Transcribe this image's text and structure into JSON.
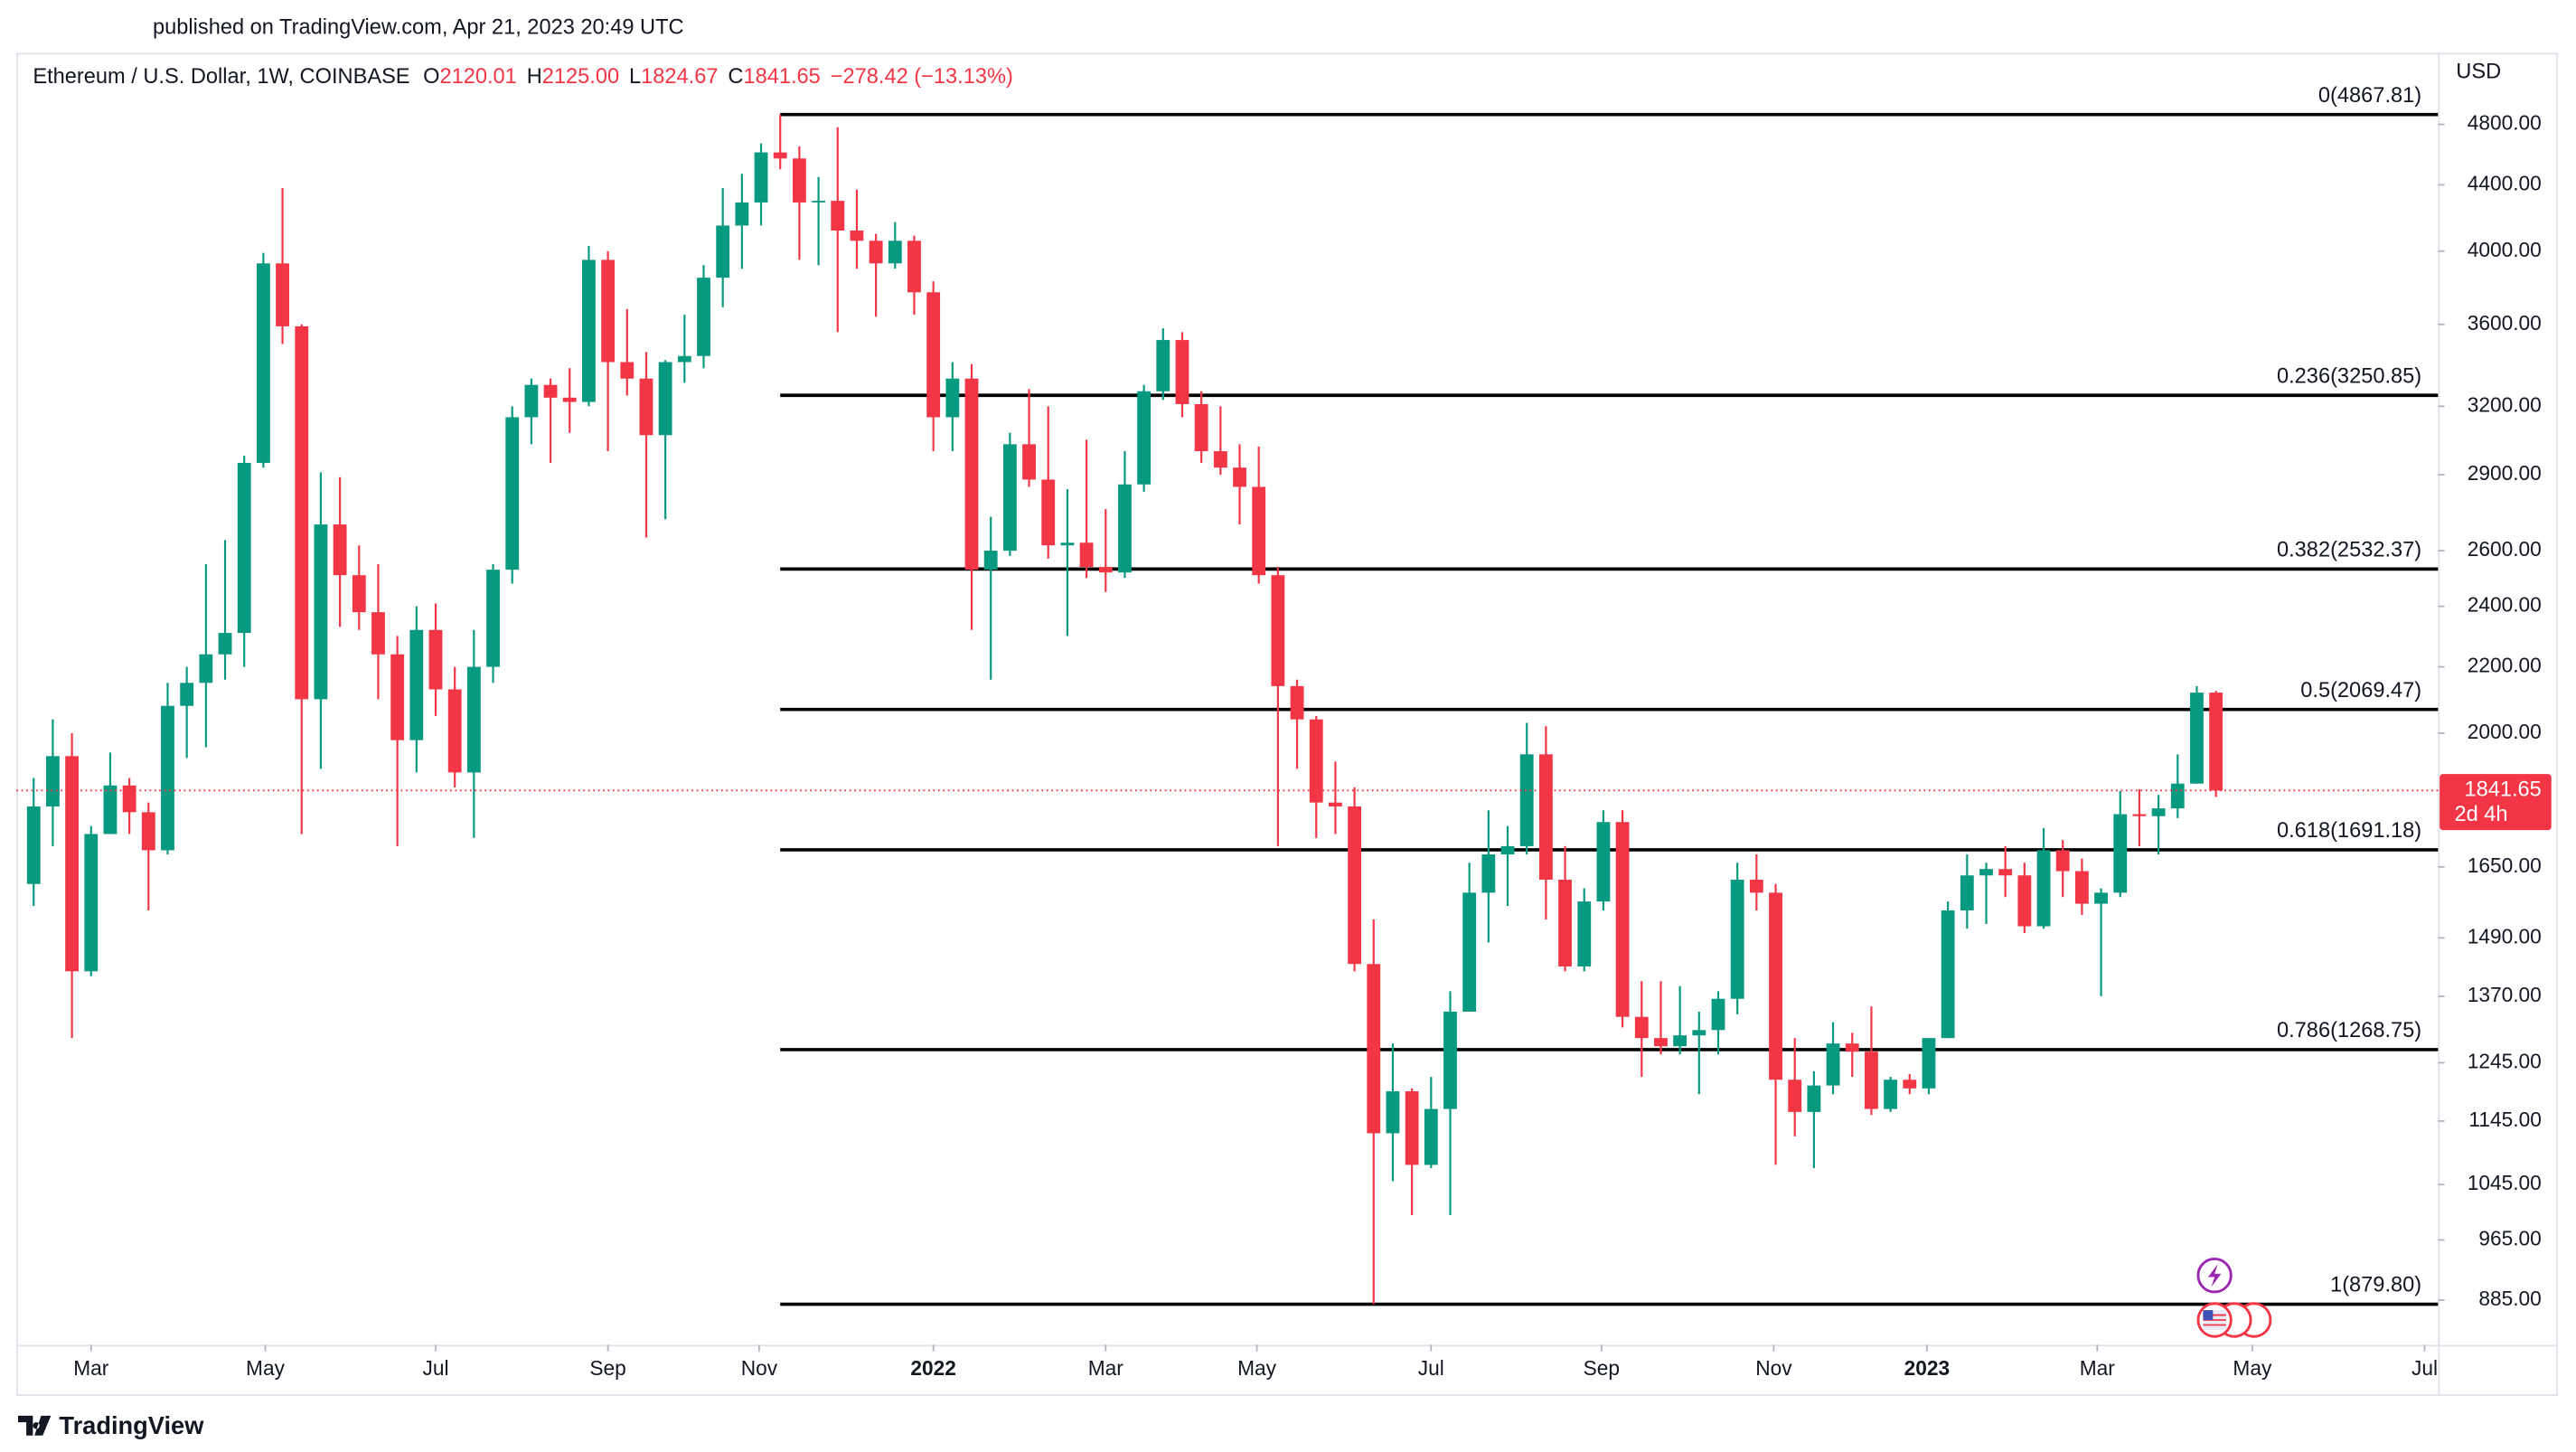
{
  "chart_data": {
    "type": "candlestick",
    "published": "published on TradingView.com, Apr 21, 2023 20:49 UTC",
    "legend": {
      "title": "Ethereum / U.S. Dollar, 1W, COINBASE",
      "fields": [
        {
          "key": "O",
          "value": "2120.01"
        },
        {
          "key": "H",
          "value": "2125.00"
        },
        {
          "key": "L",
          "value": "1824.67"
        },
        {
          "key": "C",
          "value": "1841.65"
        }
      ],
      "change": "−278.42 (−13.13%)"
    },
    "currency": "USD",
    "branding": "TradingView",
    "up_color": "#089981",
    "down_color": "#f23645",
    "fib_color": "#000000",
    "log_scale": true,
    "grid": false,
    "ylim": [
      830,
      5320
    ],
    "yticks": [
      {
        "value": 4800,
        "label": "4800.00"
      },
      {
        "value": 4400,
        "label": "4400.00"
      },
      {
        "value": 4000,
        "label": "4000.00"
      },
      {
        "value": 3600,
        "label": "3600.00"
      },
      {
        "value": 3200,
        "label": "3200.00"
      },
      {
        "value": 2900,
        "label": "2900.00"
      },
      {
        "value": 2600,
        "label": "2600.00"
      },
      {
        "value": 2400,
        "label": "2400.00"
      },
      {
        "value": 2200,
        "label": "2200.00"
      },
      {
        "value": 2000,
        "label": "2000.00"
      },
      {
        "value": 1650,
        "label": "1650.00"
      },
      {
        "value": 1490,
        "label": "1490.00"
      },
      {
        "value": 1370,
        "label": "1370.00"
      },
      {
        "value": 1245,
        "label": "1245.00"
      },
      {
        "value": 1145,
        "label": "1145.00"
      },
      {
        "value": 1045,
        "label": "1045.00"
      },
      {
        "value": 965,
        "label": "965.00"
      },
      {
        "value": 885,
        "label": "885.00"
      }
    ],
    "xlim": [
      -0.9,
      125.6
    ],
    "xticks": [
      {
        "value": 3.0,
        "label": "Mar"
      },
      {
        "value": 12.1,
        "label": "May"
      },
      {
        "value": 21.0,
        "label": "Jul"
      },
      {
        "value": 30.0,
        "label": "Sep"
      },
      {
        "value": 37.9,
        "label": "Nov"
      },
      {
        "value": 47.0,
        "label": "2022"
      },
      {
        "value": 56.0,
        "label": "Mar"
      },
      {
        "value": 63.9,
        "label": "May"
      },
      {
        "value": 73.0,
        "label": "Jul"
      },
      {
        "value": 81.9,
        "label": "Sep"
      },
      {
        "value": 90.9,
        "label": "Nov"
      },
      {
        "value": 98.9,
        "label": "2023"
      },
      {
        "value": 107.8,
        "label": "Mar"
      },
      {
        "value": 115.9,
        "label": "May"
      },
      {
        "value": 124.9,
        "label": "Jul"
      }
    ],
    "fib_levels": [
      {
        "value": 4867.81,
        "label": "0(4867.81)"
      },
      {
        "value": 3250.85,
        "label": "0.236(3250.85)"
      },
      {
        "value": 2532.37,
        "label": "0.382(2532.37)"
      },
      {
        "value": 2069.47,
        "label": "0.5(2069.47)"
      },
      {
        "value": 1691.18,
        "label": "0.618(1691.18)"
      },
      {
        "value": 1268.75,
        "label": "0.786(1268.75)"
      },
      {
        "value": 879.8,
        "label": "1(879.80)"
      }
    ],
    "last_price": 1841.65,
    "countdown": "2d 4h",
    "candles": [
      [
        1610,
        1875,
        1560,
        1800
      ],
      [
        1800,
        2040,
        1700,
        1935
      ],
      [
        1935,
        2000,
        1290,
        1420
      ],
      [
        1420,
        1750,
        1410,
        1730
      ],
      [
        1730,
        1945,
        1730,
        1855
      ],
      [
        1855,
        1875,
        1730,
        1785
      ],
      [
        1785,
        1810,
        1550,
        1690
      ],
      [
        1690,
        2150,
        1680,
        2080
      ],
      [
        2080,
        2200,
        1930,
        2150
      ],
      [
        2150,
        2550,
        1960,
        2240
      ],
      [
        2240,
        2640,
        2160,
        2310
      ],
      [
        2310,
        2980,
        2200,
        2950
      ],
      [
        2950,
        3990,
        2930,
        3930
      ],
      [
        3930,
        4380,
        3500,
        3590
      ],
      [
        3590,
        3600,
        1730,
        2100
      ],
      [
        2100,
        2910,
        1900,
        2700
      ],
      [
        2700,
        2890,
        2330,
        2510
      ],
      [
        2510,
        2620,
        2320,
        2380
      ],
      [
        2380,
        2550,
        2100,
        2240
      ],
      [
        2240,
        2300,
        1700,
        1980
      ],
      [
        1980,
        2400,
        1890,
        2320
      ],
      [
        2320,
        2410,
        2050,
        2130
      ],
      [
        2130,
        2200,
        1850,
        1890
      ],
      [
        1890,
        2320,
        1720,
        2200
      ],
      [
        2200,
        2550,
        2150,
        2530
      ],
      [
        2530,
        3200,
        2480,
        3150
      ],
      [
        3150,
        3330,
        3030,
        3300
      ],
      [
        3300,
        3330,
        2950,
        3240
      ],
      [
        3240,
        3380,
        3080,
        3220
      ],
      [
        3220,
        4030,
        3200,
        3950
      ],
      [
        3950,
        4000,
        3000,
        3410
      ],
      [
        3410,
        3680,
        3250,
        3330
      ],
      [
        3330,
        3460,
        2650,
        3070
      ],
      [
        3070,
        3420,
        2720,
        3410
      ],
      [
        3410,
        3650,
        3310,
        3440
      ],
      [
        3440,
        3920,
        3380,
        3850
      ],
      [
        3850,
        4380,
        3690,
        4150
      ],
      [
        4150,
        4470,
        3900,
        4290
      ],
      [
        4290,
        4670,
        4150,
        4610
      ],
      [
        4610,
        4868,
        4500,
        4570
      ],
      [
        4570,
        4650,
        3950,
        4290
      ],
      [
        4290,
        4450,
        3920,
        4300
      ],
      [
        4300,
        4780,
        3560,
        4120
      ],
      [
        4120,
        4370,
        3900,
        4060
      ],
      [
        4060,
        4100,
        3640,
        3930
      ],
      [
        3930,
        4170,
        3900,
        4060
      ],
      [
        4060,
        4090,
        3650,
        3770
      ],
      [
        3770,
        3830,
        3000,
        3150
      ],
      [
        3150,
        3410,
        3000,
        3330
      ],
      [
        3330,
        3400,
        2320,
        2530
      ],
      [
        2530,
        2730,
        2160,
        2600
      ],
      [
        2600,
        3080,
        2580,
        3030
      ],
      [
        3030,
        3280,
        2850,
        2880
      ],
      [
        2880,
        3200,
        2570,
        2620
      ],
      [
        2620,
        2840,
        2300,
        2630
      ],
      [
        2630,
        3050,
        2500,
        2540
      ],
      [
        2540,
        2760,
        2450,
        2520
      ],
      [
        2520,
        3000,
        2500,
        2860
      ],
      [
        2860,
        3300,
        2830,
        3270
      ],
      [
        3270,
        3580,
        3230,
        3520
      ],
      [
        3520,
        3560,
        3150,
        3210
      ],
      [
        3210,
        3270,
        2950,
        3000
      ],
      [
        3000,
        3200,
        2900,
        2930
      ],
      [
        2930,
        3030,
        2700,
        2850
      ],
      [
        2850,
        3020,
        2480,
        2510
      ],
      [
        2510,
        2540,
        1700,
        2140
      ],
      [
        2140,
        2160,
        1900,
        2040
      ],
      [
        2040,
        2050,
        1720,
        1810
      ],
      [
        1810,
        1920,
        1730,
        1800
      ],
      [
        1800,
        1850,
        1420,
        1435
      ],
      [
        1435,
        1530,
        880,
        1125
      ],
      [
        1125,
        1280,
        1050,
        1195
      ],
      [
        1195,
        1200,
        1000,
        1075
      ],
      [
        1075,
        1220,
        1070,
        1165
      ],
      [
        1165,
        1380,
        1000,
        1340
      ],
      [
        1340,
        1660,
        1340,
        1590
      ],
      [
        1590,
        1790,
        1480,
        1680
      ],
      [
        1680,
        1750,
        1560,
        1700
      ],
      [
        1700,
        2030,
        1680,
        1940
      ],
      [
        1940,
        2020,
        1530,
        1620
      ],
      [
        1620,
        1700,
        1420,
        1430
      ],
      [
        1430,
        1600,
        1420,
        1570
      ],
      [
        1570,
        1790,
        1550,
        1760
      ],
      [
        1760,
        1790,
        1310,
        1330
      ],
      [
        1330,
        1400,
        1220,
        1290
      ],
      [
        1290,
        1400,
        1260,
        1275
      ],
      [
        1275,
        1390,
        1260,
        1295
      ],
      [
        1295,
        1340,
        1190,
        1305
      ],
      [
        1305,
        1380,
        1260,
        1365
      ],
      [
        1365,
        1660,
        1335,
        1620
      ],
      [
        1620,
        1680,
        1550,
        1590
      ],
      [
        1590,
        1610,
        1075,
        1215
      ],
      [
        1215,
        1290,
        1120,
        1160
      ],
      [
        1160,
        1230,
        1070,
        1205
      ],
      [
        1205,
        1320,
        1190,
        1280
      ],
      [
        1280,
        1300,
        1220,
        1265
      ],
      [
        1265,
        1350,
        1155,
        1165
      ],
      [
        1165,
        1220,
        1160,
        1215
      ],
      [
        1215,
        1225,
        1190,
        1200
      ],
      [
        1200,
        1290,
        1190,
        1290
      ],
      [
        1290,
        1570,
        1290,
        1550
      ],
      [
        1550,
        1680,
        1510,
        1630
      ],
      [
        1630,
        1660,
        1520,
        1645
      ],
      [
        1645,
        1700,
        1580,
        1630
      ],
      [
        1630,
        1660,
        1500,
        1515
      ],
      [
        1515,
        1745,
        1510,
        1690
      ],
      [
        1690,
        1715,
        1580,
        1640
      ],
      [
        1640,
        1670,
        1540,
        1565
      ],
      [
        1565,
        1600,
        1370,
        1590
      ],
      [
        1590,
        1840,
        1580,
        1780
      ],
      [
        1780,
        1845,
        1700,
        1775
      ],
      [
        1775,
        1830,
        1680,
        1795
      ],
      [
        1795,
        1940,
        1770,
        1860
      ],
      [
        1860,
        2140,
        1860,
        2120
      ],
      [
        2120.01,
        2125,
        1824.67,
        1841.65
      ]
    ]
  }
}
